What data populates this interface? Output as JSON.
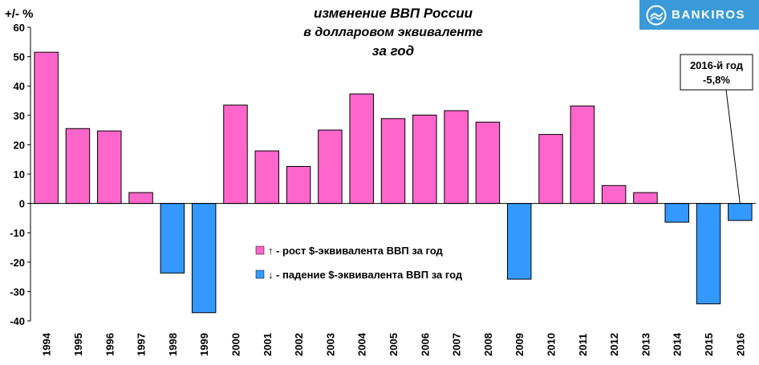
{
  "brand": {
    "name": "BANKIROS",
    "icon": "bankiros-logo-icon",
    "color": "#3a9ad9"
  },
  "chart_data": {
    "type": "bar",
    "title_lines": [
      "изменение  ВВП России",
      "в долларовом эквиваленте",
      "за год"
    ],
    "ylabel": "+/- %",
    "ylim": [
      -40,
      60
    ],
    "yticks": [
      60,
      50,
      40,
      30,
      20,
      10,
      0,
      -10,
      -20,
      -30,
      -40
    ],
    "grid": false,
    "categories": [
      "1994",
      "1995",
      "1996",
      "1997",
      "1998",
      "1999",
      "2000",
      "2001",
      "2002",
      "2003",
      "2004",
      "2005",
      "2006",
      "2007",
      "2008",
      "2009",
      "2010",
      "2011",
      "2012",
      "2013",
      "2014",
      "2015",
      "2016"
    ],
    "values": [
      51.5,
      25.5,
      24.7,
      3.7,
      -23.7,
      -37.2,
      33.5,
      17.9,
      12.6,
      25.0,
      37.3,
      28.9,
      30.1,
      31.6,
      27.7,
      -25.8,
      23.5,
      33.2,
      6.1,
      3.7,
      -6.4,
      -34.2,
      -5.8
    ],
    "colors": {
      "positive": "#ff66cc",
      "negative": "#3399ff"
    },
    "legend": {
      "position": "center",
      "entries": [
        {
          "label": "↑ - рост $-эквивалента ВВП за год",
          "color": "#ff66cc"
        },
        {
          "label": "↓ - падение $-эквивалента ВВП за год",
          "color": "#3399ff"
        }
      ]
    },
    "annotation": {
      "lines": [
        "2016-й год",
        "-5,8%"
      ],
      "target": "2016"
    }
  }
}
